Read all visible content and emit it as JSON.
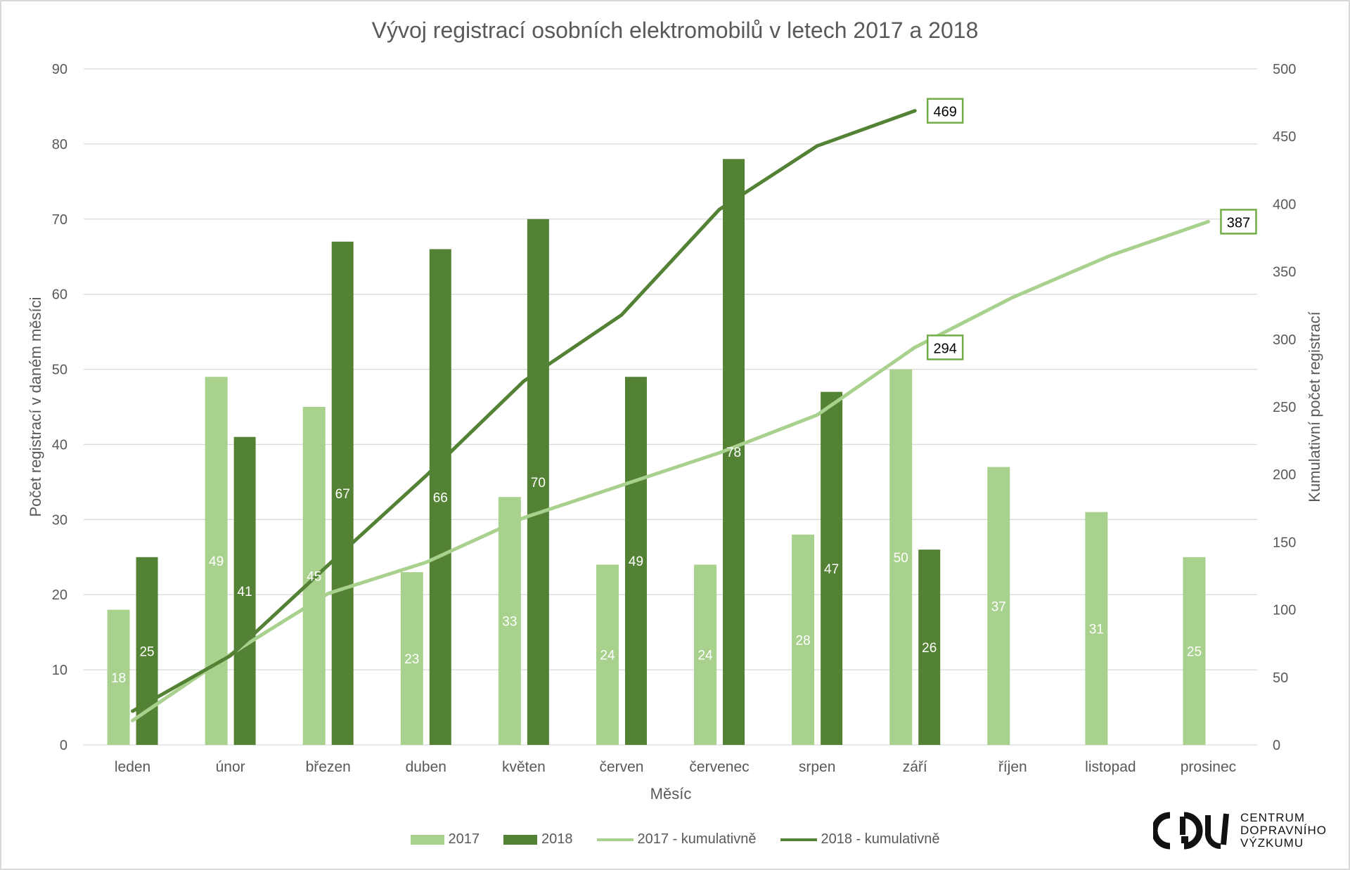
{
  "chart_data": {
    "type": "bar+line",
    "title": "Vývoj registrací osobních elektromobilů v letech 2017 a 2018",
    "xlabel": "Měsíc",
    "ylabel": "Počet registrací v daném měsíci",
    "y2label": "Kumulativní počet registrací",
    "categories": [
      "leden",
      "únor",
      "březen",
      "duben",
      "květen",
      "červen",
      "červenec",
      "srpen",
      "září",
      "říjen",
      "listopad",
      "prosinec"
    ],
    "ylim": [
      0,
      90
    ],
    "yticks": [
      0,
      10,
      20,
      30,
      40,
      50,
      60,
      70,
      80,
      90
    ],
    "y2lim": [
      0,
      500
    ],
    "y2ticks": [
      0,
      50,
      100,
      150,
      200,
      250,
      300,
      350,
      400,
      450,
      500
    ],
    "grid": true,
    "legend_position": "bottom",
    "series": [
      {
        "name": "2017",
        "kind": "bar",
        "axis": "left",
        "color": "#a9d18e",
        "values": [
          18,
          49,
          45,
          23,
          33,
          24,
          24,
          28,
          50,
          37,
          31,
          25
        ]
      },
      {
        "name": "2018",
        "kind": "bar",
        "axis": "left",
        "color": "#548235",
        "values": [
          25,
          41,
          67,
          66,
          70,
          49,
          78,
          47,
          26,
          null,
          null,
          null
        ]
      },
      {
        "name": "2017 - kumulativně",
        "kind": "line",
        "axis": "right",
        "color": "#a9d18e",
        "values": [
          18,
          67,
          112,
          135,
          168,
          192,
          216,
          244,
          294,
          331,
          362,
          387
        ]
      },
      {
        "name": "2018 - kumulativně",
        "kind": "line",
        "axis": "right",
        "color": "#548235",
        "values": [
          25,
          66,
          133,
          199,
          269,
          318,
          396,
          443,
          469,
          null,
          null,
          null
        ]
      }
    ],
    "annotations": [
      {
        "series": 3,
        "index": 8,
        "text": "469"
      },
      {
        "series": 2,
        "index": 8,
        "text": "294"
      },
      {
        "series": 2,
        "index": 11,
        "text": "387"
      }
    ],
    "annotation_border_color": "#70ad47"
  },
  "logo": {
    "mark": "CDV",
    "lines": [
      "CENTRUM",
      "DOPRAVNÍHO",
      "VÝZKUMU"
    ]
  }
}
